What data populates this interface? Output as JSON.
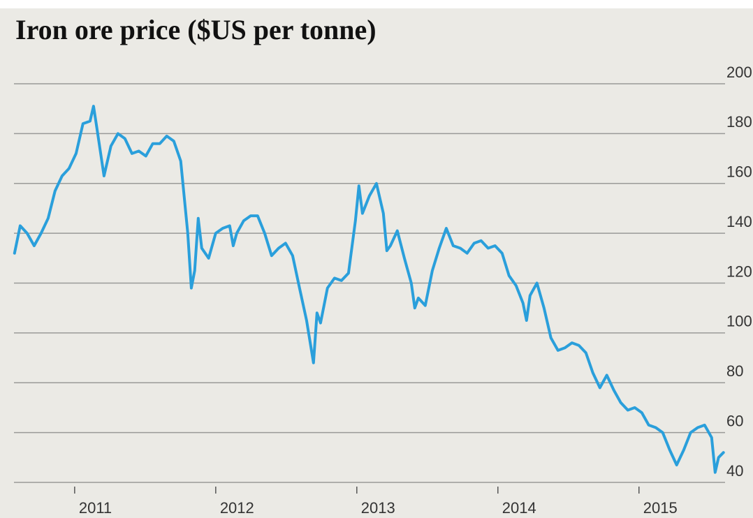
{
  "chart_data": {
    "type": "line",
    "title": "Iron ore price ($US per tonne)",
    "x": [
      2010.574,
      2010.614,
      2010.663,
      2010.713,
      2010.762,
      2010.812,
      2010.861,
      2010.911,
      2010.96,
      2011.01,
      2011.059,
      2011.109,
      2011.134,
      2011.158,
      2011.208,
      2011.257,
      2011.307,
      2011.356,
      2011.406,
      2011.455,
      2011.505,
      2011.554,
      2011.604,
      2011.653,
      2011.703,
      2011.752,
      2011.802,
      2011.827,
      2011.851,
      2011.876,
      2011.901,
      2011.95,
      2012.0,
      2012.05,
      2012.099,
      2012.124,
      2012.149,
      2012.198,
      2012.248,
      2012.297,
      2012.347,
      2012.396,
      2012.446,
      2012.495,
      2012.545,
      2012.594,
      2012.644,
      2012.693,
      2012.718,
      2012.743,
      2012.792,
      2012.842,
      2012.891,
      2012.941,
      2012.99,
      2013.015,
      2013.04,
      2013.089,
      2013.139,
      2013.188,
      2013.213,
      2013.238,
      2013.287,
      2013.337,
      2013.386,
      2013.411,
      2013.436,
      2013.485,
      2013.535,
      2013.584,
      2013.634,
      2013.683,
      2013.733,
      2013.782,
      2013.832,
      2013.881,
      2013.931,
      2013.98,
      2014.03,
      2014.079,
      2014.129,
      2014.178,
      2014.203,
      2014.228,
      2014.277,
      2014.327,
      2014.376,
      2014.426,
      2014.475,
      2014.525,
      2014.574,
      2014.624,
      2014.673,
      2014.723,
      2014.772,
      2014.822,
      2014.871,
      2014.921,
      2014.97,
      2015.02,
      2015.069,
      2015.119,
      2015.168,
      2015.218,
      2015.267,
      2015.317,
      2015.366,
      2015.416,
      2015.465,
      2015.515,
      2015.54,
      2015.564,
      2015.599
    ],
    "values": [
      132,
      143,
      140,
      135,
      140,
      146,
      157,
      163,
      166,
      172,
      184,
      185,
      191,
      182,
      163,
      175,
      180,
      178,
      172,
      173,
      171,
      176,
      176,
      179,
      177,
      169,
      140,
      118,
      125,
      146,
      134,
      130,
      140,
      142,
      143,
      135,
      140,
      145,
      147,
      147,
      140,
      131,
      134,
      136,
      131,
      118,
      105,
      88,
      108,
      104,
      118,
      122,
      121,
      124,
      145,
      159,
      148,
      155,
      160,
      148,
      133,
      135,
      141,
      130,
      120,
      110,
      114,
      111,
      125,
      134,
      142,
      135,
      134,
      132,
      136,
      137,
      134,
      135,
      132,
      123,
      119,
      112,
      105,
      115,
      120,
      110,
      98,
      93,
      94,
      96,
      95,
      92,
      84,
      78,
      83,
      77,
      72,
      69,
      70,
      68,
      63,
      62,
      60,
      53,
      47,
      53,
      60,
      62,
      63,
      58,
      44,
      50,
      52
    ],
    "color": "#2a9fdb",
    "xlim": [
      2010.57,
      2015.63
    ],
    "xticks": [
      2011,
      2012,
      2013,
      2014,
      2015
    ],
    "ylim": [
      40,
      200
    ],
    "yticks": [
      40,
      60,
      80,
      100,
      120,
      140,
      160,
      180,
      200
    ],
    "grid": true
  }
}
